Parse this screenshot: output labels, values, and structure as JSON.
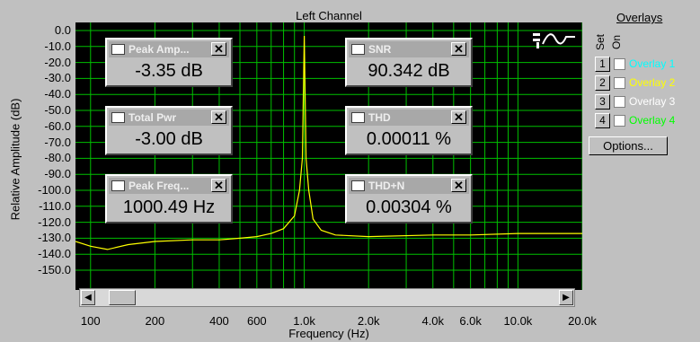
{
  "chart_title": "Left Channel",
  "chart_data": {
    "type": "line",
    "title": "Left Channel",
    "xlabel": "Frequency (Hz)",
    "ylabel": "Relative Amplitude (dB)",
    "x_scale": "log",
    "xlim": [
      85,
      20000
    ],
    "ylim": [
      -155,
      0
    ],
    "grid": true,
    "x_ticks": [
      "100",
      "200",
      "400",
      "600",
      "1.0k",
      "2.0k",
      "4.0k",
      "6.0k",
      "10.0k",
      "20.0k"
    ],
    "y_ticks": [
      "0.0",
      "-10.0",
      "-20.0",
      "-30.0",
      "-40.0",
      "-50.0",
      "-60.0",
      "-70.0",
      "-80.0",
      "-90.0",
      "-100.0",
      "-110.0",
      "-120.0",
      "-130.0",
      "-140.0",
      "-150.0"
    ],
    "series": [
      {
        "color": "#ffff00",
        "x": [
          85,
          100,
          120,
          150,
          200,
          300,
          400,
          500,
          600,
          700,
          800,
          900,
          950,
          980,
          1000,
          1020,
          1050,
          1100,
          1200,
          1400,
          2000,
          4000,
          6000,
          10000,
          20000
        ],
        "y": [
          -132,
          -135,
          -137,
          -134,
          -132,
          -131,
          -131,
          -130,
          -129,
          -127,
          -124,
          -116,
          -100,
          -80,
          -3.35,
          -80,
          -100,
          -118,
          -125,
          -128,
          -129,
          -128,
          -128,
          -127,
          -127
        ]
      }
    ]
  },
  "readouts": [
    {
      "label": "Peak Amp...",
      "value": "-3.35 dB"
    },
    {
      "label": "Total Pwr",
      "value": "-3.00 dB"
    },
    {
      "label": "Peak Freq...",
      "value": "1000.49 Hz"
    },
    {
      "label": "SNR",
      "value": "90.342 dB"
    },
    {
      "label": "THD",
      "value": "0.00011 %"
    },
    {
      "label": "THD+N",
      "value": "0.00304 %"
    }
  ],
  "overlays": {
    "title": "Overlays",
    "set_label": "Set",
    "on_label": "On",
    "items": [
      {
        "set": "1",
        "name": "Overlay 1",
        "color": "#00ffff"
      },
      {
        "set": "2",
        "name": "Overlay 2",
        "color": "#ffff00"
      },
      {
        "set": "3",
        "name": "Overlay 3",
        "color": "#ffffff"
      },
      {
        "set": "4",
        "name": "Overlay 4",
        "color": "#00ff00"
      }
    ],
    "options_label": "Options..."
  },
  "icons": {
    "readout": "waveform-icon",
    "close": "close-icon",
    "scope": "scope-sine-icon",
    "scroll_left": "arrow-left-icon",
    "scroll_right": "arrow-right-icon"
  }
}
